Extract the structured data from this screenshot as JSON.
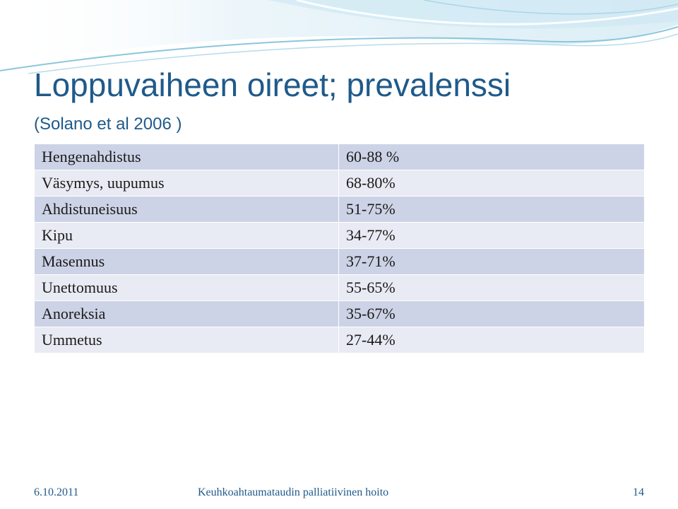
{
  "title": "Loppuvaiheen oireet; prevalenssi",
  "subtitle": "(Solano et al 2006 )",
  "table": {
    "rows": [
      {
        "symptom": "Hengenahdistus",
        "prevalence": "60-88 %"
      },
      {
        "symptom": "Väsymys, uupumus",
        "prevalence": "68-80%"
      },
      {
        "symptom": "Ahdistuneisuus",
        "prevalence": "51-75%"
      },
      {
        "symptom": "Kipu",
        "prevalence": "34-77%"
      },
      {
        "symptom": "Masennus",
        "prevalence": "37-71%"
      },
      {
        "symptom": "Unettomuus",
        "prevalence": "55-65%"
      },
      {
        "symptom": "Anoreksia",
        "prevalence": "35-67%"
      },
      {
        "symptom": "Ummetus",
        "prevalence": "27-44%"
      }
    ]
  },
  "footer": {
    "date": "6.10.2011",
    "center": "Keuhkoahtaumataudin palliatiivinen hoito",
    "page": "14"
  },
  "colors": {
    "title": "#1f5a8a",
    "row_dark": "#cdd3e6",
    "row_light": "#e8ebf3",
    "wave": "#9fd0e4"
  }
}
